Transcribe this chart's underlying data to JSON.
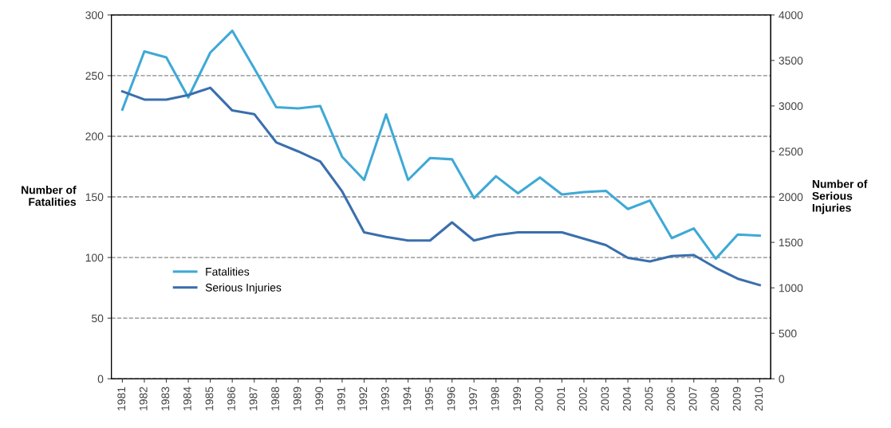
{
  "chart_data": {
    "type": "line",
    "categories": [
      "1981",
      "1982",
      "1983",
      "1984",
      "1985",
      "1986",
      "1987",
      "1988",
      "1989",
      "1990",
      "1991",
      "1992",
      "1993",
      "1994",
      "1995",
      "1996",
      "1997",
      "1998",
      "1999",
      "2000",
      "2001",
      "2002",
      "2003",
      "2004",
      "2005",
      "2006",
      "2007",
      "2008",
      "2009",
      "2010"
    ],
    "series": [
      {
        "name": "Fatalities",
        "color": "#3fa9d6",
        "values": [
          222,
          270,
          265,
          232,
          269,
          287,
          256,
          224,
          223,
          225,
          183,
          164,
          218,
          164,
          182,
          181,
          149,
          167,
          153,
          166,
          152,
          154,
          155,
          140,
          147,
          116,
          124,
          99,
          119,
          118
        ]
      },
      {
        "name": "Serious Injuries",
        "color": "#3a6fad",
        "axis": "y2",
        "values": [
          3160,
          3070,
          3070,
          3120,
          3200,
          2950,
          2910,
          2600,
          2500,
          2390,
          2060,
          1610,
          1560,
          1520,
          1520,
          1720,
          1520,
          1580,
          1610,
          1610,
          1610,
          1540,
          1470,
          1330,
          1290,
          1350,
          1360,
          1220,
          1100,
          1030
        ]
      }
    ],
    "ylabel": "Number of\nFatalities",
    "y2label": "Number of\nSerious\nInjuries",
    "ylim": [
      0,
      300
    ],
    "yticks": [
      0,
      50,
      100,
      150,
      200,
      250,
      300
    ],
    "y2lim": [
      0,
      4000
    ],
    "y2ticks": [
      0,
      500,
      1000,
      1500,
      2000,
      2500,
      3000,
      3500,
      4000
    ],
    "grid": "y",
    "legend": "left",
    "marker": "none",
    "line_style": "solid"
  }
}
